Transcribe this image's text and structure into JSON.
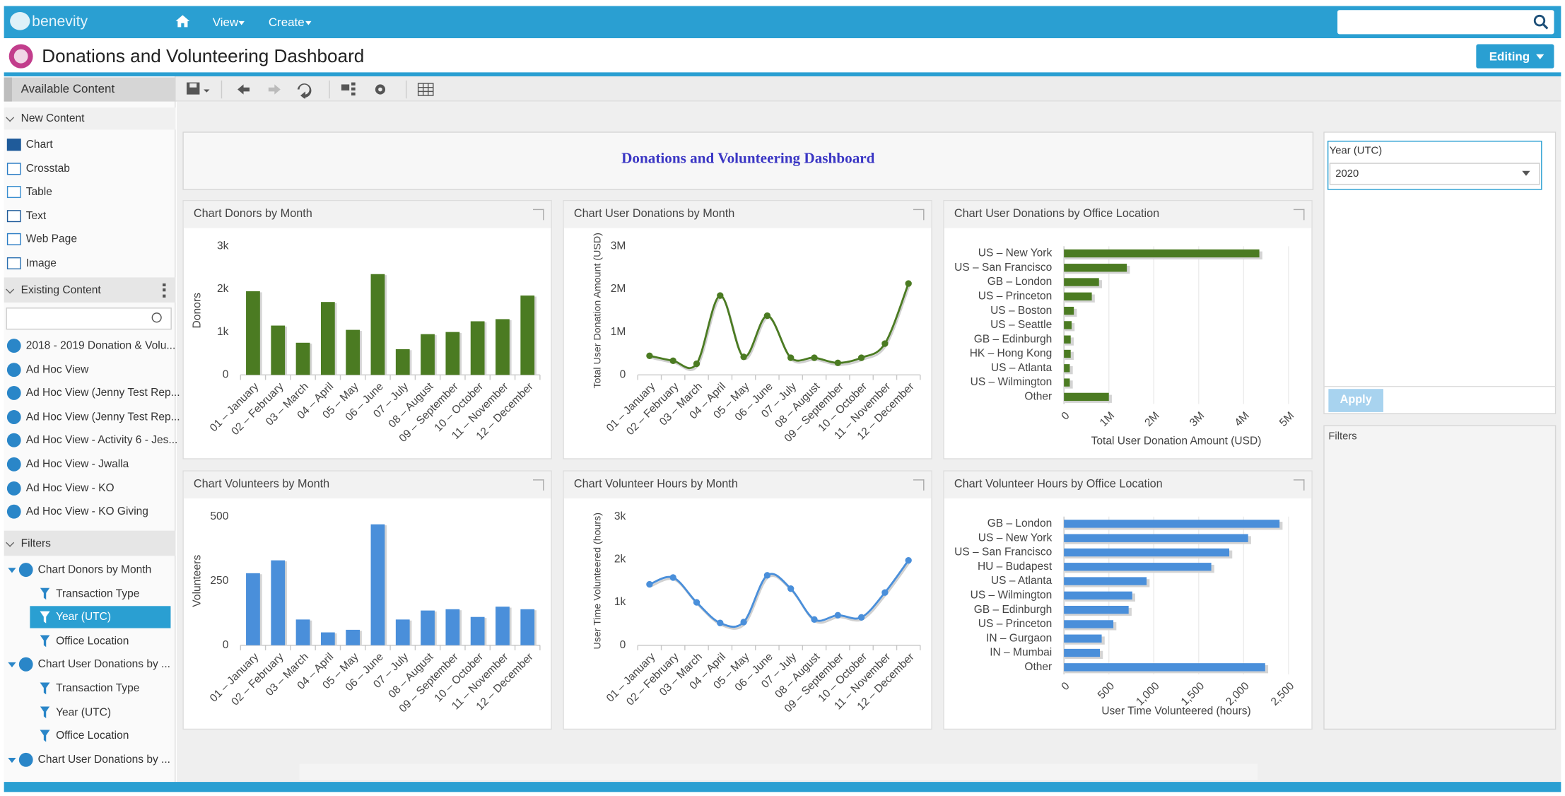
{
  "header": {
    "logo": "benevity",
    "nav": [
      "View",
      "Create"
    ],
    "page_title": "Donations and Volunteering Dashboard",
    "mode": "Editing"
  },
  "sidebar": {
    "title": "Available Content",
    "new_content": {
      "heading": "New Content",
      "items": [
        "Chart",
        "Crosstab",
        "Table",
        "Text",
        "Web Page",
        "Image"
      ]
    },
    "existing_content": {
      "heading": "Existing Content",
      "items": [
        "2018 - 2019 Donation & Volu...",
        "Ad Hoc View",
        "Ad Hoc View (Jenny Test Rep...",
        "Ad Hoc View (Jenny Test Rep...",
        "Ad Hoc View - Activity 6 - Jes...",
        "Ad Hoc View - Jwalla",
        "Ad Hoc View - KO",
        "Ad Hoc View - KO Giving"
      ]
    },
    "filters": {
      "heading": "Filters",
      "groups": [
        {
          "name": "Chart Donors by Month",
          "items": [
            "Transaction Type",
            "Year (UTC)",
            "Office Location"
          ]
        },
        {
          "name": "Chart User Donations by ...",
          "items": [
            "Transaction Type",
            "Year (UTC)",
            "Office Location"
          ]
        },
        {
          "name": "Chart User Donations by ..."
        }
      ]
    }
  },
  "dashboard_title": "Donations and Volunteering Dashboard",
  "chart_data": [
    {
      "type": "bar",
      "title": "Chart Donors by Month",
      "ylabel": "Donors",
      "color": "#4b7b22",
      "categories": [
        "01 – January",
        "02 – February",
        "03 – March",
        "04 – April",
        "05 – May",
        "06 – June",
        "07 – July",
        "08 – August",
        "09 – September",
        "10 – October",
        "11 – November",
        "12 – December"
      ],
      "values": [
        1950,
        1150,
        750,
        1700,
        1050,
        2350,
        600,
        950,
        1000,
        1250,
        1300,
        1850
      ],
      "ylim": [
        0,
        3000
      ],
      "yticks": [
        0,
        {
          "value": 1000,
          "label": "1k"
        },
        {
          "value": 2000,
          "label": "2k"
        },
        {
          "value": 3000,
          "label": "3k"
        }
      ]
    },
    {
      "type": "line",
      "title": "Chart User Donations by Month",
      "ylabel": "Total User Donation Amount (USD)",
      "color": "#4b7b22",
      "categories": [
        "01 – January",
        "02 – February",
        "03 – March",
        "04 – April",
        "05 – May",
        "06 – June",
        "07 – July",
        "08 – August",
        "09 – September",
        "10 – October",
        "11 – November",
        "12 – December"
      ],
      "values": [
        445000,
        330000,
        260000,
        1850000,
        420000,
        1380000,
        400000,
        400000,
        280000,
        400000,
        730000,
        2130000
      ],
      "ylim": [
        0,
        3000000
      ],
      "yticks": [
        0,
        {
          "value": 1000000,
          "label": "1M"
        },
        {
          "value": 2000000,
          "label": "2M"
        },
        {
          "value": 3000000,
          "label": "3M"
        }
      ]
    },
    {
      "type": "barh",
      "title": "Chart User Donations by Office Location",
      "xlabel": "Total User Donation Amount (USD)",
      "color": "#4b7b22",
      "categories": [
        "US – New York",
        "US – San Francisco",
        "GB – London",
        "US – Princeton",
        "US – Boston",
        "US – Seattle",
        "GB – Edinburgh",
        "HK – Hong Kong",
        "US – Atlanta",
        "US – Wilmington",
        "Other"
      ],
      "values": [
        4350000,
        1400000,
        780000,
        620000,
        220000,
        170000,
        150000,
        150000,
        130000,
        130000,
        1000000
      ],
      "xlim": [
        0,
        5000000
      ],
      "xticks": [
        0,
        {
          "value": 1000000,
          "label": "1M"
        },
        {
          "value": 2000000,
          "label": "2M"
        },
        {
          "value": 3000000,
          "label": "3M"
        },
        {
          "value": 4000000,
          "label": "4M"
        },
        {
          "value": 5000000,
          "label": "5M"
        }
      ]
    },
    {
      "type": "bar",
      "title": "Chart Volunteers by Month",
      "ylabel": "Volunteers",
      "color": "#4a8fda",
      "categories": [
        "01 – January",
        "02 – February",
        "03 – March",
        "04 – April",
        "05 – May",
        "06 – June",
        "07 – July",
        "08 – August",
        "09 – September",
        "10 – October",
        "11 – November",
        "12 – December"
      ],
      "values": [
        280,
        330,
        100,
        50,
        60,
        470,
        100,
        135,
        140,
        110,
        150,
        140
      ],
      "ylim": [
        0,
        500
      ],
      "yticks": [
        0,
        250,
        500
      ]
    },
    {
      "type": "line",
      "title": "Chart Volunteer Hours by Month",
      "ylabel": "User Time Volunteered (hours)",
      "color": "#4a8fda",
      "categories": [
        "01 – January",
        "02 – February",
        "03 – March",
        "04 – April",
        "05 – May",
        "06 – June",
        "07 – July",
        "08 – August",
        "09 – September",
        "10 – October",
        "11 – November",
        "12 – December"
      ],
      "values": [
        1420,
        1580,
        1000,
        520,
        540,
        1630,
        1320,
        600,
        700,
        650,
        1230,
        1980
      ],
      "ylim": [
        0,
        3000
      ],
      "yticks": [
        0,
        {
          "value": 1000,
          "label": "1k"
        },
        {
          "value": 2000,
          "label": "2k"
        },
        {
          "value": 3000,
          "label": "3k"
        }
      ]
    },
    {
      "type": "barh",
      "title": "Chart Volunteer Hours by Office Location",
      "xlabel": "User Time Volunteered (hours)",
      "color": "#4a8fda",
      "categories": [
        "GB – London",
        "US – New York",
        "US – San Francisco",
        "HU – Budapest",
        "US – Atlanta",
        "US – Wilmington",
        "GB – Edinburgh",
        "US – Princeton",
        "IN – Gurgaon",
        "IN – Mumbai",
        "Other"
      ],
      "values": [
        2400,
        2050,
        1840,
        1640,
        920,
        760,
        720,
        550,
        420,
        400,
        2240
      ],
      "xlim": [
        0,
        2500
      ],
      "xticks": [
        0,
        500,
        {
          "value": 1000,
          "label": "1,000"
        },
        {
          "value": 1500,
          "label": "1,500"
        },
        {
          "value": 2000,
          "label": "2,000"
        },
        {
          "value": 2500,
          "label": "2,500"
        }
      ]
    }
  ],
  "filter_panel": {
    "label": "Year (UTC)",
    "value": "2020",
    "button": "Apply",
    "heading": "Filters"
  }
}
